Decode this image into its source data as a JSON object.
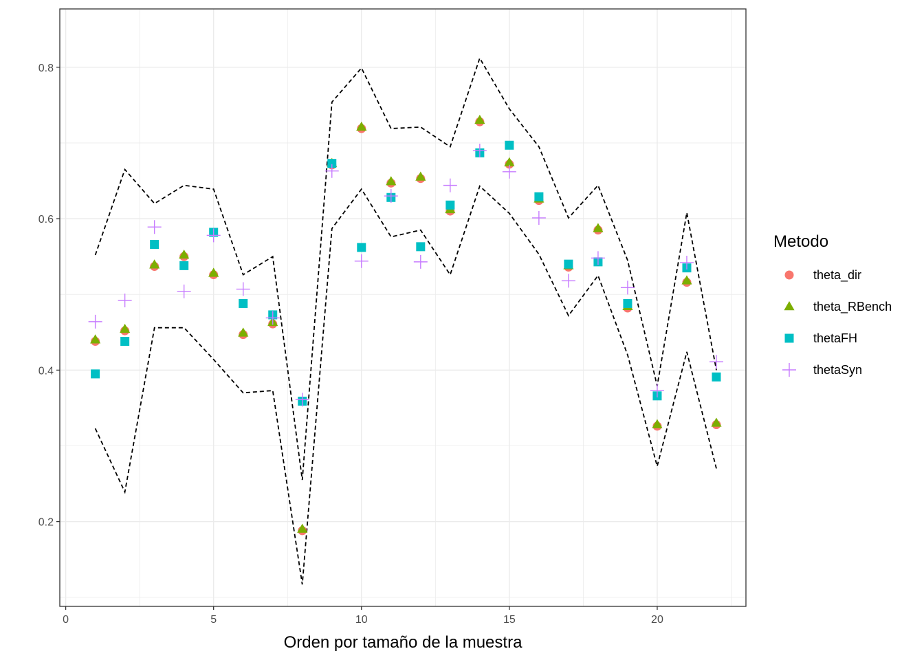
{
  "chart_data": {
    "type": "scatter",
    "title": "",
    "xlabel": "Orden por tamaño de la muestra",
    "ylabel": "",
    "xlim": [
      -0.2,
      23.0
    ],
    "ylim": [
      0.088,
      0.877
    ],
    "x_ticks": [
      0,
      5,
      10,
      15,
      20
    ],
    "x_tick_labels": [
      "0",
      "5",
      "10",
      "15",
      "20"
    ],
    "y_ticks": [
      0.2,
      0.4,
      0.6,
      0.8
    ],
    "y_tick_labels": [
      "0.2",
      "0.4",
      "0.6",
      "0.8"
    ],
    "grid": true,
    "legend": {
      "title": "Metodo",
      "position": "right"
    },
    "x": [
      1,
      2,
      3,
      4,
      5,
      6,
      7,
      8,
      9,
      10,
      11,
      12,
      13,
      14,
      15,
      16,
      17,
      18,
      19,
      20,
      21,
      22
    ],
    "series": [
      {
        "name": "theta_dir",
        "marker": "circle",
        "color": "#F8766D",
        "values": [
          0.438,
          0.452,
          0.537,
          0.55,
          0.526,
          0.447,
          0.461,
          0.188,
          0.671,
          0.719,
          0.647,
          0.653,
          0.61,
          0.728,
          0.672,
          0.624,
          0.536,
          0.585,
          0.482,
          0.326,
          0.516,
          0.328
        ]
      },
      {
        "name": "theta_RBench",
        "marker": "triangle",
        "color": "#7CAE00",
        "values": [
          0.44,
          0.454,
          0.539,
          0.552,
          0.528,
          0.449,
          0.463,
          0.19,
          0.673,
          0.721,
          0.649,
          0.655,
          0.612,
          0.73,
          0.674,
          0.626,
          0.538,
          0.587,
          0.484,
          0.328,
          0.518,
          0.33
        ]
      },
      {
        "name": "thetaFH",
        "marker": "square",
        "color": "#00BFC4",
        "values": [
          0.395,
          0.438,
          0.566,
          0.538,
          0.582,
          0.488,
          0.473,
          0.359,
          0.673,
          0.562,
          0.628,
          0.563,
          0.618,
          0.687,
          0.697,
          0.629,
          0.54,
          0.543,
          0.488,
          0.366,
          0.535,
          0.391
        ]
      },
      {
        "name": "thetaSyn",
        "marker": "plus",
        "color": "#C77CFF",
        "values": [
          0.464,
          0.492,
          0.589,
          0.504,
          0.578,
          0.507,
          0.469,
          0.361,
          0.663,
          0.544,
          0.63,
          0.543,
          0.644,
          0.69,
          0.662,
          0.601,
          0.518,
          0.548,
          0.509,
          0.373,
          0.542,
          0.411
        ]
      }
    ],
    "bands": [
      {
        "name": "upper",
        "linestyle": "dashed",
        "color": "#000000",
        "values": [
          0.552,
          0.665,
          0.62,
          0.644,
          0.639,
          0.526,
          0.55,
          0.255,
          0.754,
          0.799,
          0.719,
          0.721,
          0.695,
          0.812,
          0.745,
          0.695,
          0.601,
          0.644,
          0.545,
          0.379,
          0.608,
          0.4
        ]
      },
      {
        "name": "lower",
        "linestyle": "dashed",
        "color": "#000000",
        "values": [
          0.323,
          0.239,
          0.456,
          0.456,
          0.414,
          0.37,
          0.373,
          0.117,
          0.587,
          0.639,
          0.576,
          0.585,
          0.526,
          0.643,
          0.607,
          0.553,
          0.472,
          0.525,
          0.42,
          0.273,
          0.424,
          0.27
        ]
      }
    ]
  }
}
